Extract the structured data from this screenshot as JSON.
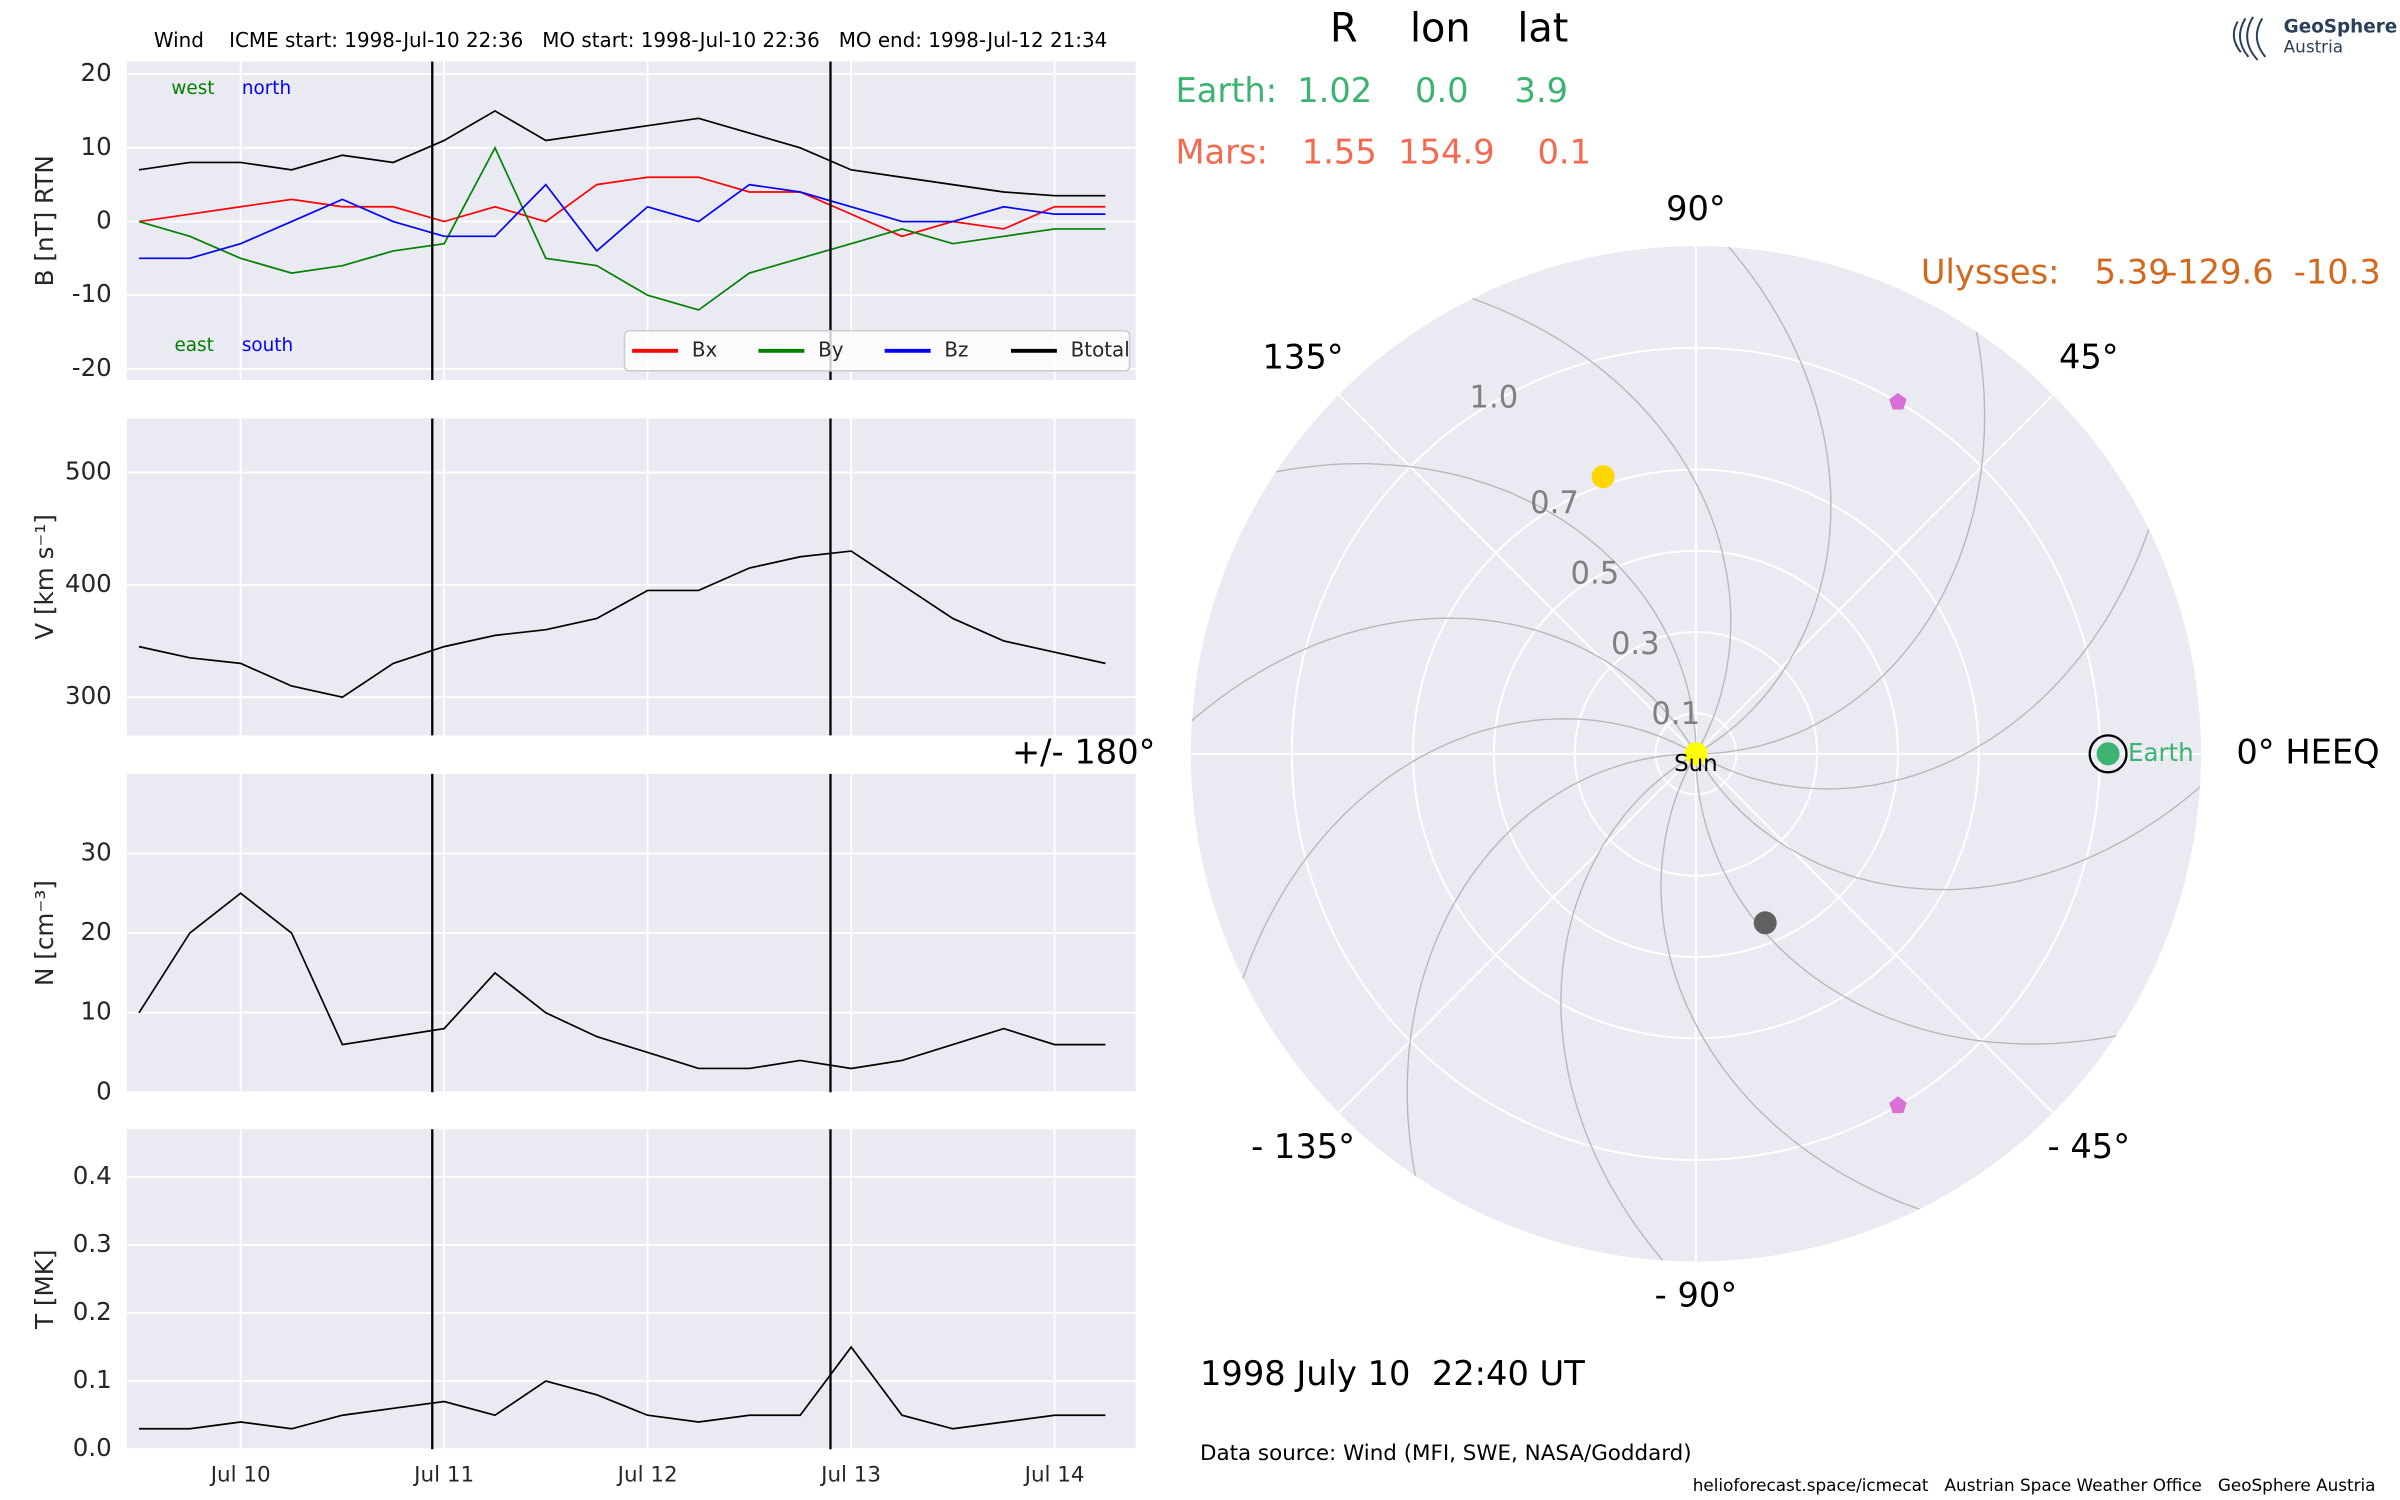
{
  "chart_data": [
    {
      "type": "line",
      "title": "Wind    ICME start: 1998-Jul-10 22:36   MO start: 1998-Jul-10 22:36   MO end: 1998-Jul-12 21:34",
      "ylabel": "B [nT] RTN",
      "x": [
        "1998-07-09 12:00",
        "1998-07-09 18:00",
        "1998-07-10 00:00",
        "1998-07-10 06:00",
        "1998-07-10 12:00",
        "1998-07-10 18:00",
        "1998-07-11 00:00",
        "1998-07-11 06:00",
        "1998-07-11 12:00",
        "1998-07-11 18:00",
        "1998-07-12 00:00",
        "1998-07-12 06:00",
        "1998-07-12 12:00",
        "1998-07-12 18:00",
        "1998-07-13 00:00",
        "1998-07-13 06:00",
        "1998-07-13 12:00",
        "1998-07-13 18:00",
        "1998-07-14 00:00",
        "1998-07-14 06:00"
      ],
      "xlim": [
        "1998-07-09 10:36",
        "1998-07-14 09:34"
      ],
      "xticks": [
        "1998-07-10 00:00",
        "1998-07-11 00:00",
        "1998-07-12 00:00",
        "1998-07-13 00:00",
        "1998-07-14 00:00"
      ],
      "ylim": [
        -21.5,
        21.7
      ],
      "yticks": [
        20,
        10,
        0,
        -10,
        -20
      ],
      "grid": true,
      "legend": "lower right",
      "event_times": [
        "1998-07-10 22:36",
        "1998-07-12 21:34"
      ],
      "annotations": [
        {
          "text": "west",
          "color": "#008000"
        },
        {
          "text": "north",
          "color": "#0000ff"
        },
        {
          "text": "east",
          "color": "#008000"
        },
        {
          "text": "south",
          "color": "#0000ff"
        }
      ],
      "series": [
        {
          "name": "Bx",
          "color": "#ff0000",
          "values": [
            0,
            1,
            2,
            3,
            2,
            2,
            0,
            2,
            0,
            5,
            6,
            6,
            4,
            4,
            1,
            -2,
            0,
            -1,
            2,
            2
          ]
        },
        {
          "name": "By",
          "color": "#008000",
          "values": [
            0,
            -2,
            -5,
            -7,
            -6,
            -4,
            -3,
            10,
            -5,
            -6,
            -10,
            -12,
            -7,
            -5,
            -3,
            -1,
            -3,
            -2,
            -1,
            -1
          ]
        },
        {
          "name": "Bz",
          "color": "#0000ff",
          "values": [
            -5,
            -5,
            -3,
            0,
            3,
            0,
            -2,
            -2,
            5,
            -4,
            2,
            0,
            5,
            4,
            2,
            0,
            0,
            2,
            1,
            1
          ]
        },
        {
          "name": "Btotal",
          "color": "#000000",
          "values": [
            7,
            8,
            8,
            7,
            9,
            8,
            11,
            15,
            11,
            12,
            13,
            14,
            12,
            10,
            7,
            6,
            5,
            4,
            3.5,
            3.5
          ]
        }
      ]
    },
    {
      "type": "line",
      "ylabel": "V [km s⁻¹]",
      "x": [
        "1998-07-09 12:00",
        "1998-07-09 18:00",
        "1998-07-10 00:00",
        "1998-07-10 06:00",
        "1998-07-10 12:00",
        "1998-07-10 18:00",
        "1998-07-11 00:00",
        "1998-07-11 06:00",
        "1998-07-11 12:00",
        "1998-07-11 18:00",
        "1998-07-12 00:00",
        "1998-07-12 06:00",
        "1998-07-12 12:00",
        "1998-07-12 18:00",
        "1998-07-13 00:00",
        "1998-07-13 06:00",
        "1998-07-13 12:00",
        "1998-07-13 18:00",
        "1998-07-14 00:00",
        "1998-07-14 06:00"
      ],
      "xlim": [
        "1998-07-09 10:36",
        "1998-07-14 09:34"
      ],
      "xticks": [
        "1998-07-10 00:00",
        "1998-07-11 00:00",
        "1998-07-12 00:00",
        "1998-07-13 00:00",
        "1998-07-14 00:00"
      ],
      "ylim": [
        266,
        548
      ],
      "yticks": [
        300,
        400,
        500
      ],
      "grid": true,
      "event_times": [
        "1998-07-10 22:36",
        "1998-07-12 21:34"
      ],
      "series": [
        {
          "color": "#000000",
          "values": [
            345,
            335,
            330,
            310,
            300,
            330,
            345,
            355,
            360,
            370,
            395,
            395,
            415,
            425,
            430,
            400,
            370,
            350,
            340,
            330
          ]
        }
      ]
    },
    {
      "type": "line",
      "ylabel": "N [cm⁻³]",
      "x": [
        "1998-07-09 12:00",
        "1998-07-09 18:00",
        "1998-07-10 00:00",
        "1998-07-10 06:00",
        "1998-07-10 12:00",
        "1998-07-10 18:00",
        "1998-07-11 00:00",
        "1998-07-11 06:00",
        "1998-07-11 12:00",
        "1998-07-11 18:00",
        "1998-07-12 00:00",
        "1998-07-12 06:00",
        "1998-07-12 12:00",
        "1998-07-12 18:00",
        "1998-07-13 00:00",
        "1998-07-13 06:00",
        "1998-07-13 12:00",
        "1998-07-13 18:00",
        "1998-07-14 00:00",
        "1998-07-14 06:00"
      ],
      "xlim": [
        "1998-07-09 10:36",
        "1998-07-14 09:34"
      ],
      "xticks": [
        "1998-07-10 00:00",
        "1998-07-11 00:00",
        "1998-07-12 00:00",
        "1998-07-13 00:00",
        "1998-07-14 00:00"
      ],
      "ylim": [
        0,
        40
      ],
      "yticks": [
        0,
        10,
        20,
        30
      ],
      "grid": true,
      "event_times": [
        "1998-07-10 22:36",
        "1998-07-12 21:34"
      ],
      "series": [
        {
          "color": "#000000",
          "values": [
            10,
            20,
            25,
            20,
            6,
            7,
            8,
            15,
            10,
            7,
            5,
            3,
            3,
            4,
            3,
            4,
            6,
            8,
            6,
            6
          ]
        }
      ]
    },
    {
      "type": "line",
      "ylabel": "T [MK]",
      "x": [
        "1998-07-09 12:00",
        "1998-07-09 18:00",
        "1998-07-10 00:00",
        "1998-07-10 06:00",
        "1998-07-10 12:00",
        "1998-07-10 18:00",
        "1998-07-11 00:00",
        "1998-07-11 06:00",
        "1998-07-11 12:00",
        "1998-07-11 18:00",
        "1998-07-12 00:00",
        "1998-07-12 06:00",
        "1998-07-12 12:00",
        "1998-07-12 18:00",
        "1998-07-13 00:00",
        "1998-07-13 06:00",
        "1998-07-13 12:00",
        "1998-07-13 18:00",
        "1998-07-14 00:00",
        "1998-07-14 06:00"
      ],
      "xlim": [
        "1998-07-09 10:36",
        "1998-07-14 09:34"
      ],
      "xticks": [
        {
          "value": "1998-07-10 00:00",
          "label": "Jul 10"
        },
        {
          "value": "1998-07-11 00:00",
          "label": "Jul 11"
        },
        {
          "value": "1998-07-12 00:00",
          "label": "Jul 12"
        },
        {
          "value": "1998-07-13 00:00",
          "label": "Jul 13"
        },
        {
          "value": "1998-07-14 00:00",
          "label": "Jul 14"
        }
      ],
      "ylim": [
        0,
        0.47
      ],
      "yticks": [
        {
          "value": 0,
          "label": "0.0"
        },
        0.1,
        0.2,
        0.3,
        0.4
      ],
      "grid": true,
      "event_times": [
        "1998-07-10 22:36",
        "1998-07-12 21:34"
      ],
      "series": [
        {
          "color": "#000000",
          "values": [
            0.03,
            0.03,
            0.04,
            0.03,
            0.05,
            0.06,
            0.07,
            0.05,
            0.1,
            0.08,
            0.05,
            0.04,
            0.05,
            0.05,
            0.15,
            0.05,
            0.03,
            0.04,
            0.05,
            0.05
          ]
        }
      ]
    },
    {
      "type": "polar",
      "rlim": [
        0,
        1.25
      ],
      "rticks": [
        0.1,
        0.3,
        0.5,
        0.7,
        {
          "value": 1,
          "label": "1.0"
        }
      ],
      "thetaticks": [
        {
          "value": 0,
          "label": "0° HEEQ"
        },
        {
          "value": 45,
          "label": "45°"
        },
        {
          "value": 90,
          "label": "90°"
        },
        {
          "value": 135,
          "label": "135°"
        },
        {
          "value": 180,
          "label": "+/- 180°"
        },
        {
          "value": -135,
          "label": "- 135°"
        },
        {
          "value": -90,
          "label": "- 90°"
        },
        {
          "value": -45,
          "label": "- 45°"
        }
      ],
      "points": [
        {
          "r": 0,
          "lon": 0,
          "color": "#ffff00",
          "marker": "circle",
          "label": "Sun",
          "label_color": "#000000"
        },
        {
          "r": 1.02,
          "lon": 0,
          "color": "#3cb371",
          "marker": "circle",
          "outline": "#000000",
          "label": "Earth",
          "label_color": "#3cb371"
        },
        {
          "r": 0.72,
          "lon": 108.6,
          "color": "#ffd700",
          "marker": "circle"
        },
        {
          "r": 0.45,
          "lon": -67.6,
          "color": "#606060",
          "marker": "circle"
        },
        {
          "r": 1.0,
          "lon": 60,
          "color": "#da70d6",
          "marker": "pentagon"
        },
        {
          "r": 1.0,
          "lon": -60,
          "color": "#da70d6",
          "marker": "pentagon"
        }
      ]
    }
  ],
  "positions": {
    "columns": [
      "R",
      "lon",
      "lat"
    ],
    "rows": [
      {
        "name": "Earth:",
        "color": "#3cb371",
        "values": [
          "1.02",
          "0.0",
          "3.9"
        ]
      },
      {
        "name": "Mars:",
        "color": "#f4694f",
        "values": [
          "1.55",
          "154.9",
          "0.1"
        ]
      },
      {
        "name": "Ulysses:",
        "color": "#d2691e",
        "values": [
          "5.39",
          "-129.6",
          "-10.3"
        ]
      }
    ]
  },
  "header": {
    "date": "1998 July 10  22:40 UT",
    "source": "Data source: Wind (MFI, SWE, NASA/Goddard)",
    "footer": "helioforecast.space/icmecat   Austrian Space Weather Office   GeoSphere Austria",
    "logo": [
      "GeoSphere",
      "Austria"
    ]
  }
}
